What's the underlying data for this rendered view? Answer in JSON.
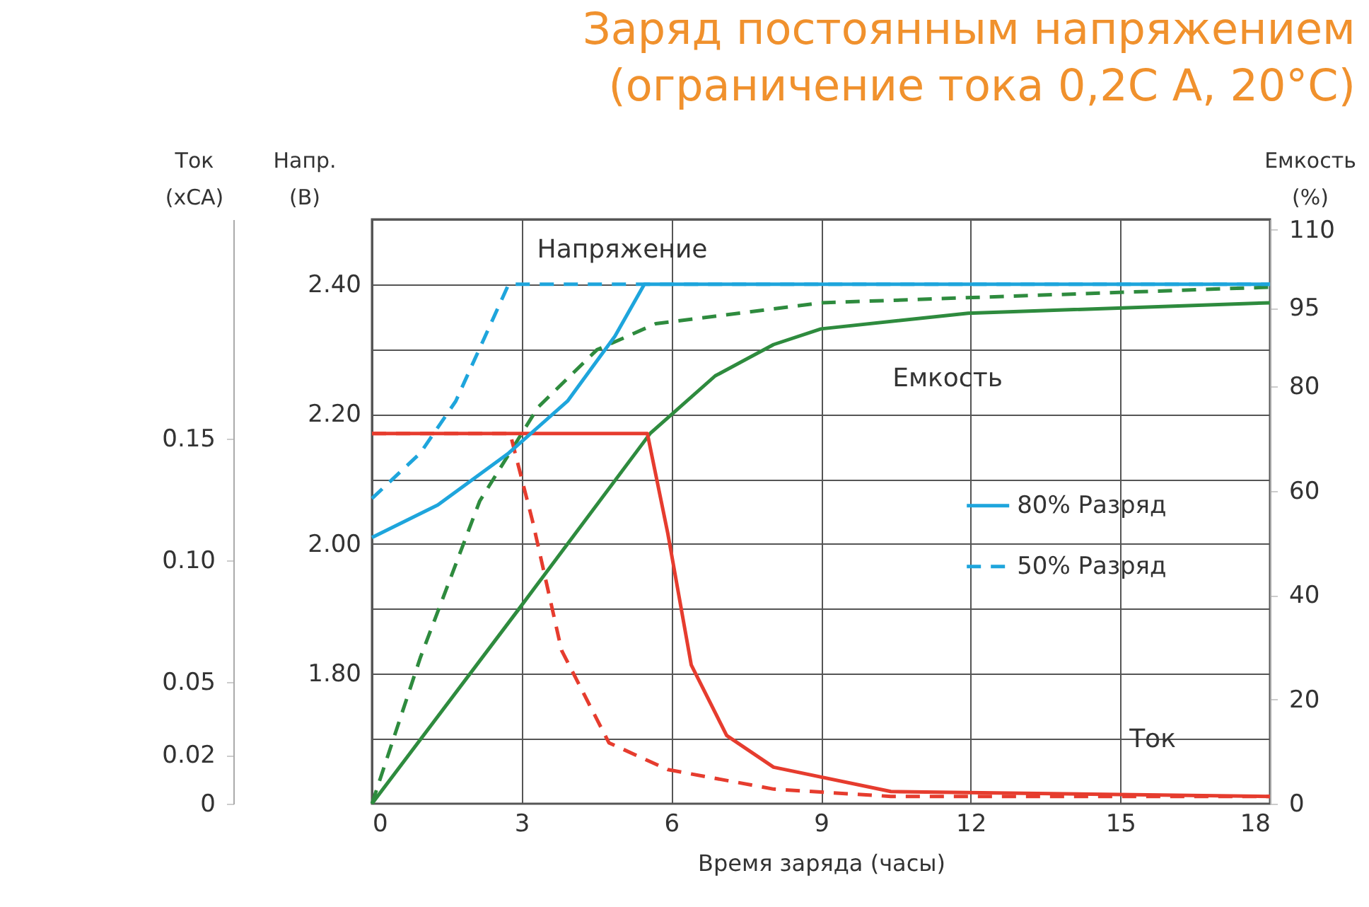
{
  "chart_data": {
    "type": "line",
    "title": "Заряд постоянным напряжением\n(ограничение тока 0,2C A, 20°C)",
    "xlabel": "Время заряда (часы)",
    "ylabel": "Напр. (В)",
    "y2label": "Ток (xCA)",
    "y3label": "Емкость (%)",
    "xlim": [
      0,
      18
    ],
    "xticks": [
      0,
      3,
      6,
      9,
      12,
      15,
      18
    ],
    "ylim": [
      1.6,
      2.5
    ],
    "yticks": [
      {
        "value": 1.7,
        "label": null
      },
      {
        "value": 1.8,
        "label": "1.80"
      },
      {
        "value": 1.9,
        "label": null
      },
      {
        "value": 2.0,
        "label": "2.00"
      },
      {
        "value": 2.1,
        "label": null
      },
      {
        "value": 2.2,
        "label": "2.20"
      },
      {
        "value": 2.3,
        "label": null
      },
      {
        "value": 2.4,
        "label": "2.40"
      },
      {
        "value": 2.5,
        "label": null
      }
    ],
    "y2lim": [
      0,
      0.24
    ],
    "y2ticks": [
      0,
      0.02,
      0.05,
      {
        "value": 0.1,
        "label": "0.10"
      },
      0.15
    ],
    "y3lim": [
      0,
      112
    ],
    "y3ticks": [
      0,
      20,
      40,
      60,
      80,
      95,
      110
    ],
    "grid": true,
    "legend": "right",
    "series": [
      {
        "name": "80% Разряд",
        "color": "#1ea5dc",
        "axis": "y",
        "line_style": "solid",
        "x": [
          0,
          1.32,
          2.74,
          3.92,
          4.87,
          5.46,
          18
        ],
        "values": [
          2.01,
          2.06,
          2.14,
          2.22,
          2.32,
          2.4,
          2.4
        ]
      },
      {
        "name": "50% Разряд",
        "color": "#1ea5dc",
        "axis": "y",
        "line_style": "dashed",
        "x": [
          0,
          0.97,
          1.68,
          2.74,
          18
        ],
        "values": [
          2.07,
          2.14,
          2.22,
          2.4,
          2.4
        ]
      },
      {
        "color": "#e63c2e",
        "axis": "y2",
        "line_style": "solid",
        "x": [
          0,
          5.52,
          5.93,
          6.4,
          7.11,
          8.05,
          10.4,
          18
        ],
        "values": [
          0.152,
          0.152,
          0.111,
          0.057,
          0.028,
          0.015,
          0.005,
          0.003
        ]
      },
      {
        "color": "#e63c2e",
        "axis": "y2",
        "line_style": "dashed",
        "x": [
          0,
          2.77,
          3.22,
          3.8,
          4.75,
          5.93,
          8.05,
          10.4,
          18
        ],
        "values": [
          0.152,
          0.152,
          0.116,
          0.063,
          0.025,
          0.014,
          0.006,
          0.003,
          0.003
        ]
      },
      {
        "color": "#2e8b3e",
        "axis": "y3",
        "line_style": "solid",
        "x": [
          0,
          2.92,
          5.58,
          6.88,
          8.05,
          9.0,
          11.95,
          18
        ],
        "values": [
          0,
          37,
          71,
          82,
          88,
          91,
          94,
          96
        ]
      },
      {
        "color": "#2e8b3e",
        "axis": "y3",
        "line_style": "dashed",
        "x": [
          0,
          0.97,
          2.16,
          3.33,
          4.51,
          5.69,
          9.0,
          18
        ],
        "values": [
          0,
          28,
          58,
          76,
          87,
          92,
          96,
          99
        ]
      }
    ],
    "annotations": [
      "Напряжение",
      "Емкость",
      "Ток"
    ]
  }
}
